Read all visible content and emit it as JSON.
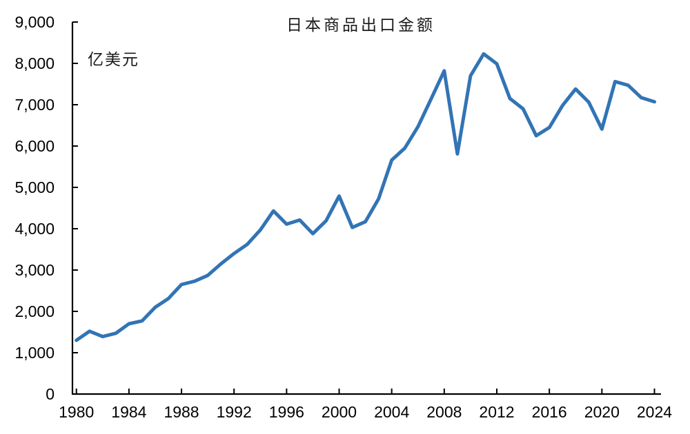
{
  "title": "日本商品出口金额",
  "unit_label": "亿美元",
  "colors": {
    "line": "#3274B5",
    "axis": "#000000",
    "text": "#000000",
    "background": "#FFFFFF"
  },
  "axes": {
    "x_tick_labels": [
      "1980",
      "1984",
      "1988",
      "1992",
      "1996",
      "2000",
      "2004",
      "2008",
      "2012",
      "2016",
      "2020",
      "2024"
    ],
    "y_tick_labels": [
      "0",
      "1,000",
      "2,000",
      "3,000",
      "4,000",
      "5,000",
      "6,000",
      "7,000",
      "8,000",
      "9,000"
    ]
  },
  "chart_data": {
    "type": "line",
    "title": "日本商品出口金额",
    "ylabel": "亿美元",
    "xlabel": "",
    "x": [
      1980,
      1981,
      1982,
      1983,
      1984,
      1985,
      1986,
      1987,
      1988,
      1989,
      1990,
      1991,
      1992,
      1993,
      1994,
      1995,
      1996,
      1997,
      1998,
      1999,
      2000,
      2001,
      2002,
      2003,
      2004,
      2005,
      2006,
      2007,
      2008,
      2009,
      2010,
      2011,
      2012,
      2013,
      2014,
      2015,
      2016,
      2017,
      2018,
      2019,
      2020,
      2021,
      2022,
      2023,
      2024
    ],
    "values": [
      1300,
      1520,
      1390,
      1470,
      1700,
      1770,
      2100,
      2310,
      2650,
      2730,
      2870,
      3150,
      3400,
      3620,
      3970,
      4430,
      4110,
      4210,
      3880,
      4190,
      4790,
      4030,
      4170,
      4720,
      5660,
      5950,
      6470,
      7140,
      7820,
      5810,
      7700,
      8230,
      7990,
      7150,
      6900,
      6250,
      6450,
      6980,
      7380,
      7060,
      6410,
      7560,
      7470,
      7170,
      7070
    ],
    "x_ticks": [
      1980,
      1984,
      1988,
      1992,
      1996,
      2000,
      2004,
      2008,
      2012,
      2016,
      2020,
      2024
    ],
    "y_ticks": [
      0,
      1000,
      2000,
      3000,
      4000,
      5000,
      6000,
      7000,
      8000,
      9000
    ],
    "xlim": [
      1980,
      2024
    ],
    "ylim": [
      0,
      9000
    ],
    "grid": false,
    "legend": null
  }
}
